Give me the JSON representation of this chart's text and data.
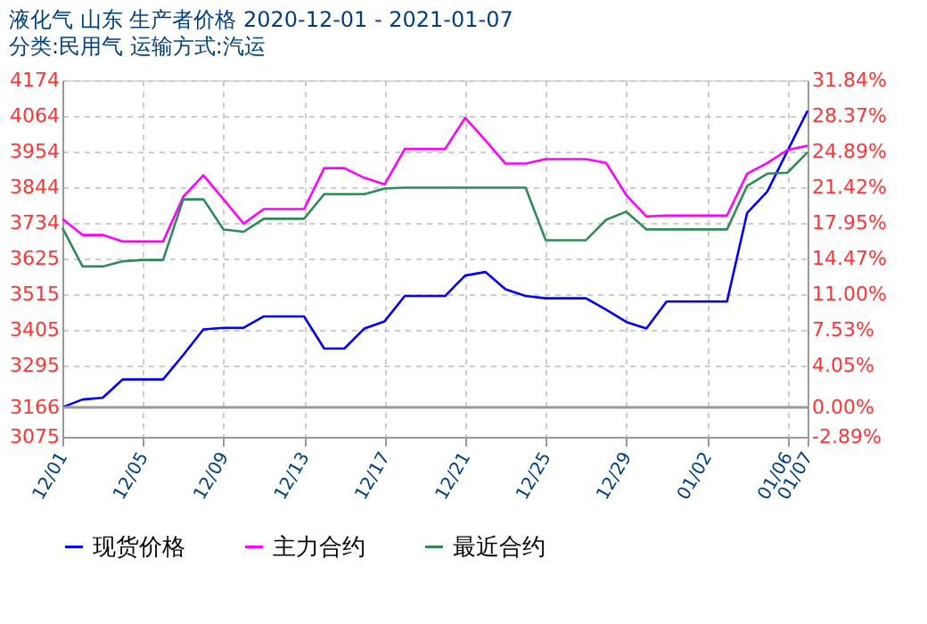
{
  "chart_data": {
    "type": "line",
    "title": "液化气 山东 生产者价格 2020-12-01 - 2021-01-07",
    "subtitle": "分类:民用气 运输方式:汽运",
    "x": [
      "2020-12-01",
      "2020-12-02",
      "2020-12-03",
      "2020-12-04",
      "2020-12-05",
      "2020-12-06",
      "2020-12-07",
      "2020-12-08",
      "2020-12-09",
      "2020-12-10",
      "2020-12-11",
      "2020-12-12",
      "2020-12-13",
      "2020-12-14",
      "2020-12-15",
      "2020-12-16",
      "2020-12-17",
      "2020-12-18",
      "2020-12-19",
      "2020-12-20",
      "2020-12-21",
      "2020-12-22",
      "2020-12-23",
      "2020-12-24",
      "2020-12-25",
      "2020-12-26",
      "2020-12-27",
      "2020-12-28",
      "2020-12-29",
      "2020-12-30",
      "2020-12-31",
      "2021-01-01",
      "2021-01-02",
      "2021-01-03",
      "2021-01-04",
      "2021-01-05",
      "2021-01-06",
      "2021-01-07"
    ],
    "series": [
      {
        "name": "现货价格",
        "color": "#0000ff",
        "values": [
          3166,
          3190,
          3195,
          3252,
          3252,
          3252,
          3327,
          3406,
          3411,
          3411,
          3446,
          3446,
          3446,
          3347,
          3347,
          3409,
          3431,
          3509,
          3509,
          3509,
          3572,
          3583,
          3530,
          3509,
          3502,
          3502,
          3502,
          3467,
          3429,
          3409,
          3492,
          3492,
          3492,
          3492,
          3765,
          3831,
          3956,
          4080
        ]
      },
      {
        "name": "主力合约",
        "color": "#ff00ff",
        "values": [
          3747,
          3697,
          3697,
          3677,
          3677,
          3677,
          3815,
          3881,
          3807,
          3732,
          3777,
          3777,
          3777,
          3903,
          3903,
          3873,
          3853,
          3962,
          3962,
          3962,
          4058,
          3989,
          3917,
          3917,
          3931,
          3931,
          3931,
          3919,
          3820,
          3754,
          3757,
          3757,
          3757,
          3757,
          3886,
          3919,
          3959,
          3972
        ]
      },
      {
        "name": "最近合约",
        "color": "#2e8b57",
        "values": [
          3719,
          3600,
          3600,
          3616,
          3620,
          3620,
          3807,
          3807,
          3714,
          3707,
          3747,
          3747,
          3747,
          3823,
          3823,
          3823,
          3840,
          3843,
          3843,
          3843,
          3843,
          3843,
          3843,
          3843,
          3681,
          3681,
          3681,
          3744,
          3769,
          3714,
          3714,
          3714,
          3714,
          3714,
          3848,
          3886,
          3889,
          3952
        ]
      }
    ],
    "xlim": [
      "2020-12-01",
      "2021-01-07"
    ],
    "xticks": [
      {
        "value": "2020-12-01",
        "label": "12/01"
      },
      {
        "value": "2020-12-05",
        "label": "12/05"
      },
      {
        "value": "2020-12-09",
        "label": "12/09"
      },
      {
        "value": "2020-12-13",
        "label": "12/13"
      },
      {
        "value": "2020-12-17",
        "label": "12/17"
      },
      {
        "value": "2020-12-21",
        "label": "12/21"
      },
      {
        "value": "2020-12-25",
        "label": "12/25"
      },
      {
        "value": "2020-12-29",
        "label": "12/29"
      },
      {
        "value": "2021-01-02",
        "label": "01/02"
      },
      {
        "value": "2021-01-06",
        "label": "01/06"
      },
      {
        "value": "2021-01-07",
        "label": "01/07"
      }
    ],
    "ylim": [
      3075,
      4174
    ],
    "yticks": [
      3075,
      3166,
      3295,
      3405,
      3515,
      3625,
      3734,
      3844,
      3954,
      4064,
      4174
    ],
    "y2lim": [
      -2.89,
      31.84
    ],
    "y2ticks": [
      {
        "value": -2.89,
        "label": "-2.89%"
      },
      {
        "value": 0,
        "label": "0.00%"
      },
      {
        "value": 4.05,
        "label": "4.05%"
      },
      {
        "value": 7.53,
        "label": "7.53%"
      },
      {
        "value": 11.0,
        "label": "11.00%"
      },
      {
        "value": 14.47,
        "label": "14.47%"
      },
      {
        "value": 17.95,
        "label": "17.95%"
      },
      {
        "value": 21.42,
        "label": "21.42%"
      },
      {
        "value": 24.89,
        "label": "24.89%"
      },
      {
        "value": 28.37,
        "label": "28.37%"
      },
      {
        "value": 31.84,
        "label": "31.84%"
      }
    ],
    "ref_lines": [
      {
        "axis": "y",
        "value": 3166,
        "color": "#999999"
      }
    ],
    "grid": true,
    "legend": "bottom",
    "line_style": "solid",
    "marker": "none"
  }
}
